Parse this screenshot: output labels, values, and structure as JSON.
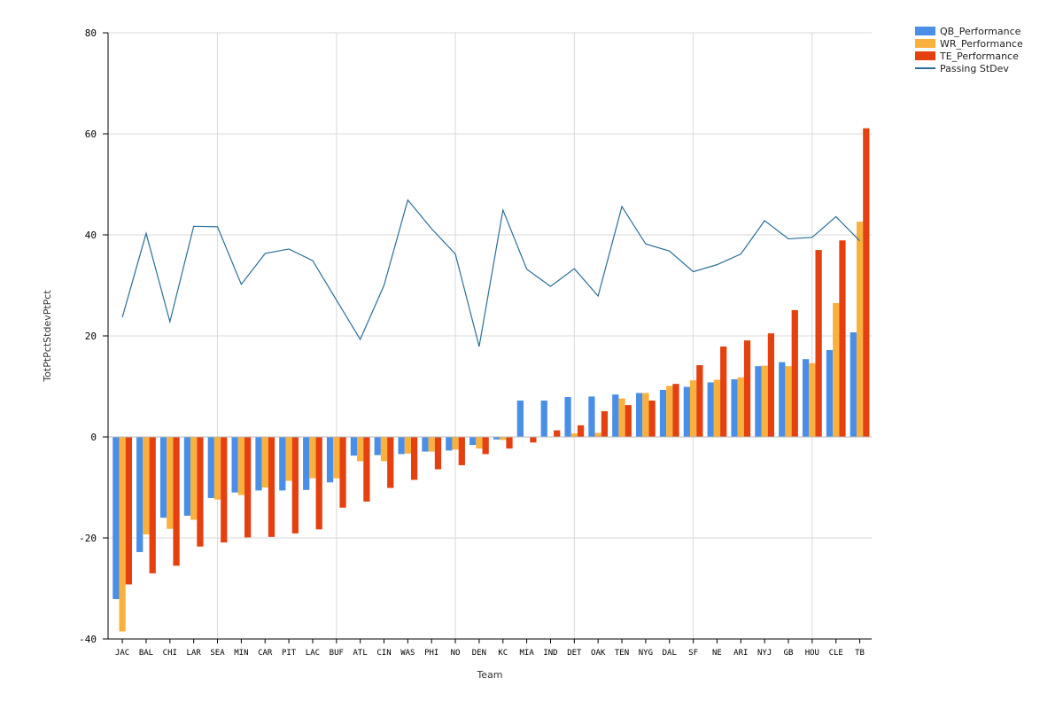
{
  "chart_data": {
    "type": "bar",
    "xlabel": "Team",
    "ylabel": "TotPtPctStdevPtPct",
    "ylim": [
      -40,
      80
    ],
    "yticks": [
      -40,
      -20,
      0,
      20,
      40,
      60,
      80
    ],
    "grid": true,
    "legend_position": "top-right",
    "categories": [
      "JAC",
      "BAL",
      "CHI",
      "LAR",
      "SEA",
      "MIN",
      "CAR",
      "PIT",
      "LAC",
      "BUF",
      "ATL",
      "CIN",
      "WAS",
      "PHI",
      "NO",
      "DEN",
      "KC",
      "MIA",
      "IND",
      "DET",
      "OAK",
      "TEN",
      "NYG",
      "DAL",
      "SF",
      "NE",
      "ARI",
      "NYJ",
      "GB",
      "HOU",
      "CLE",
      "TB"
    ],
    "series": [
      {
        "name": "QB_Performance",
        "kind": "bar",
        "color": "#4a8fe7",
        "values": [
          -32.1,
          -22.8,
          -16.0,
          -15.6,
          -12.1,
          -11.0,
          -10.6,
          -10.6,
          -10.5,
          -9.0,
          -3.7,
          -3.6,
          -3.4,
          -2.9,
          -2.7,
          -1.6,
          -0.5,
          7.2,
          7.2,
          7.9,
          8.0,
          8.4,
          8.7,
          9.3,
          9.9,
          10.8,
          11.4,
          14.0,
          14.8,
          15.4,
          17.2,
          20.7
        ]
      },
      {
        "name": "WR_Performance",
        "kind": "bar",
        "color": "#f9b13e",
        "values": [
          -38.5,
          -19.3,
          -18.2,
          -16.4,
          -12.4,
          -11.5,
          -10.0,
          -8.7,
          -8.2,
          -8.2,
          -4.8,
          -4.8,
          -3.3,
          -2.9,
          -2.5,
          -2.3,
          -0.6,
          0.0,
          0.0,
          0.7,
          0.8,
          7.6,
          8.7,
          10.1,
          11.2,
          11.3,
          11.8,
          14.1,
          14.0,
          14.6,
          26.5,
          42.6
        ]
      },
      {
        "name": "TE_Performance",
        "kind": "bar",
        "color": "#e5400f",
        "values": [
          -29.2,
          -27.0,
          -25.5,
          -21.7,
          -20.9,
          -19.9,
          -19.8,
          -19.1,
          -18.3,
          -14.0,
          -12.8,
          -10.1,
          -8.5,
          -6.4,
          -5.6,
          -3.4,
          -2.3,
          -1.1,
          1.3,
          2.3,
          5.1,
          6.3,
          7.2,
          10.5,
          14.2,
          17.9,
          19.1,
          20.5,
          25.1,
          37.0,
          38.9,
          61.1
        ]
      },
      {
        "name": "Passing StDev",
        "kind": "line",
        "color": "#2a6f97",
        "values": [
          23.7,
          40.3,
          22.8,
          41.7,
          41.6,
          30.2,
          36.3,
          37.2,
          34.9,
          27.1,
          19.3,
          30.0,
          46.9,
          41.2,
          36.2,
          17.9,
          44.9,
          33.2,
          29.8,
          33.3,
          27.9,
          45.6,
          38.2,
          36.8,
          32.7,
          34.1,
          36.2,
          42.8,
          39.2,
          39.5,
          43.6,
          38.8
        ]
      }
    ]
  }
}
